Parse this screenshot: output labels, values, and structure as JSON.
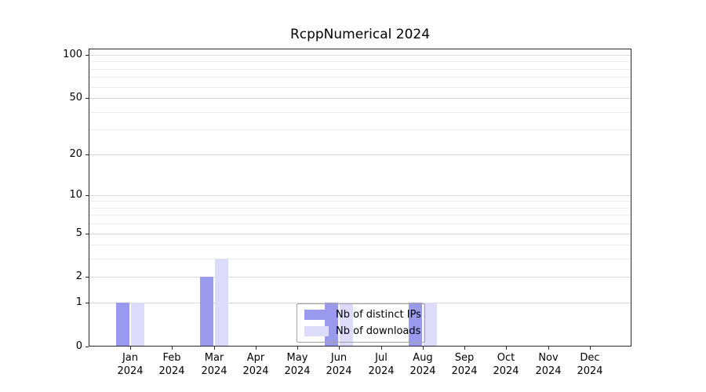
{
  "chart_data": {
    "type": "bar",
    "title": "RcppNumerical 2024",
    "categories": [
      "Jan 2024",
      "Feb 2024",
      "Mar 2024",
      "Apr 2024",
      "May 2024",
      "Jun 2024",
      "Jul 2024",
      "Aug 2024",
      "Sep 2024",
      "Oct 2024",
      "Nov 2024",
      "Dec 2024"
    ],
    "x_tick_months": [
      "Jan",
      "Feb",
      "Mar",
      "Apr",
      "May",
      "Jun",
      "Jul",
      "Aug",
      "Sep",
      "Oct",
      "Nov",
      "Dec"
    ],
    "x_tick_year": "2024",
    "series": [
      {
        "name": "Nb of distinct IPs",
        "color": "#9999ee",
        "values": [
          1,
          0,
          2,
          0,
          0,
          1,
          0,
          1,
          0,
          0,
          0,
          0
        ]
      },
      {
        "name": "Nb of downloads",
        "color": "#dcdcfa",
        "values": [
          1,
          0,
          3,
          0,
          0,
          1,
          0,
          1,
          0,
          0,
          0,
          0
        ]
      }
    ],
    "y_axis": {
      "scale": "log1p",
      "ticks": [
        100,
        50,
        20,
        10,
        5,
        2,
        1,
        0
      ],
      "minor_gridlines": [
        3,
        4,
        6,
        7,
        8,
        9,
        30,
        40,
        60,
        70,
        80,
        90
      ],
      "range_max": 100
    },
    "legend": {
      "position": "inside-bottom-center",
      "border_color": "#a3a3a3"
    },
    "grid": true,
    "colors": {
      "distinct_ips": "#9999ee",
      "downloads": "#dcdcfa",
      "grid_major": "#d9d9d9",
      "grid_minor": "#ececec"
    }
  }
}
